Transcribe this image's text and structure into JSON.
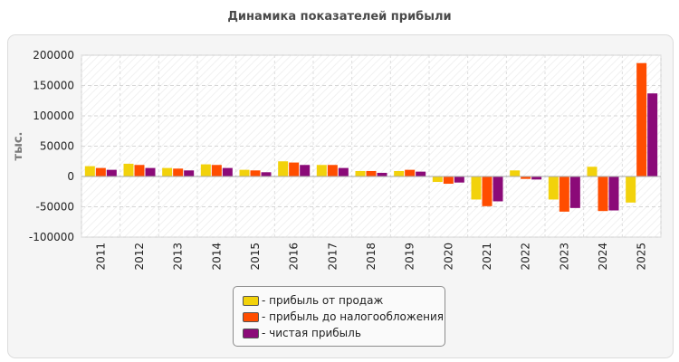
{
  "chart_data": {
    "type": "bar",
    "title": "Динамика показателей прибыли",
    "ylabel": "тыс.",
    "xlabel": "",
    "categories": [
      "2011",
      "2012",
      "2013",
      "2014",
      "2015",
      "2016",
      "2017",
      "2018",
      "2019",
      "2020",
      "2021",
      "2022",
      "2023",
      "2024",
      "2025"
    ],
    "ylim": [
      -100000,
      200000
    ],
    "yticks": [
      200000,
      150000,
      100000,
      50000,
      0,
      -50000,
      -100000
    ],
    "grid": true,
    "legend_position": "bottom",
    "series": [
      {
        "name": "- прибыль от продаж",
        "color": "#f2d20b",
        "values": [
          17000,
          21000,
          14000,
          20000,
          11000,
          25000,
          19000,
          9000,
          9000,
          -9000,
          -38000,
          10000,
          -38000,
          16000,
          -43000
        ]
      },
      {
        "name": "- прибыль до налогообложения",
        "color": "#ff4d00",
        "values": [
          14000,
          19000,
          13000,
          19000,
          10000,
          23000,
          19000,
          9000,
          11000,
          -12000,
          -49000,
          -4000,
          -58000,
          -57000,
          187000
        ]
      },
      {
        "name": "- чистая прибыль",
        "color": "#8b0a78",
        "values": [
          11000,
          14000,
          10000,
          14000,
          7000,
          19000,
          14000,
          6000,
          8000,
          -10000,
          -41000,
          -5000,
          -52000,
          -56000,
          137000
        ]
      }
    ]
  }
}
